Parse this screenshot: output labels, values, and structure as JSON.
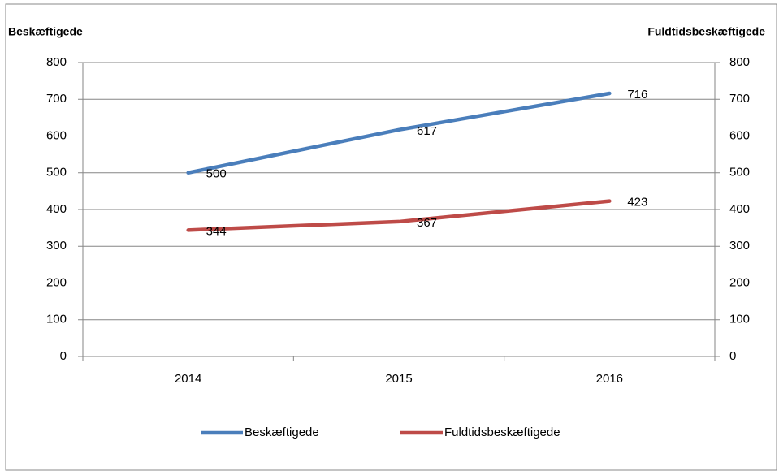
{
  "chart_data": {
    "type": "line",
    "ylabel": "Beskæftigede",
    "y2label": "Fuldtidsbeskæftigede",
    "categories": [
      "2014",
      "2015",
      "2016"
    ],
    "series": [
      {
        "name": "Beskæftigede",
        "color": "#4a7ebb",
        "values": [
          500,
          617,
          716
        ]
      },
      {
        "name": "Fuldtidsbeskæftigede",
        "color": "#be4b48",
        "values": [
          344,
          367,
          423
        ],
        "axis": "y2"
      }
    ],
    "ylim": [
      0,
      800
    ],
    "yticks": [
      0,
      100,
      200,
      300,
      400,
      500,
      600,
      700,
      800
    ],
    "y2lim": [
      0,
      800
    ],
    "y2ticks": [
      0,
      100,
      200,
      300,
      400,
      500,
      600,
      700,
      800
    ],
    "grid": true,
    "legend": "bottom",
    "data_labels": true
  }
}
